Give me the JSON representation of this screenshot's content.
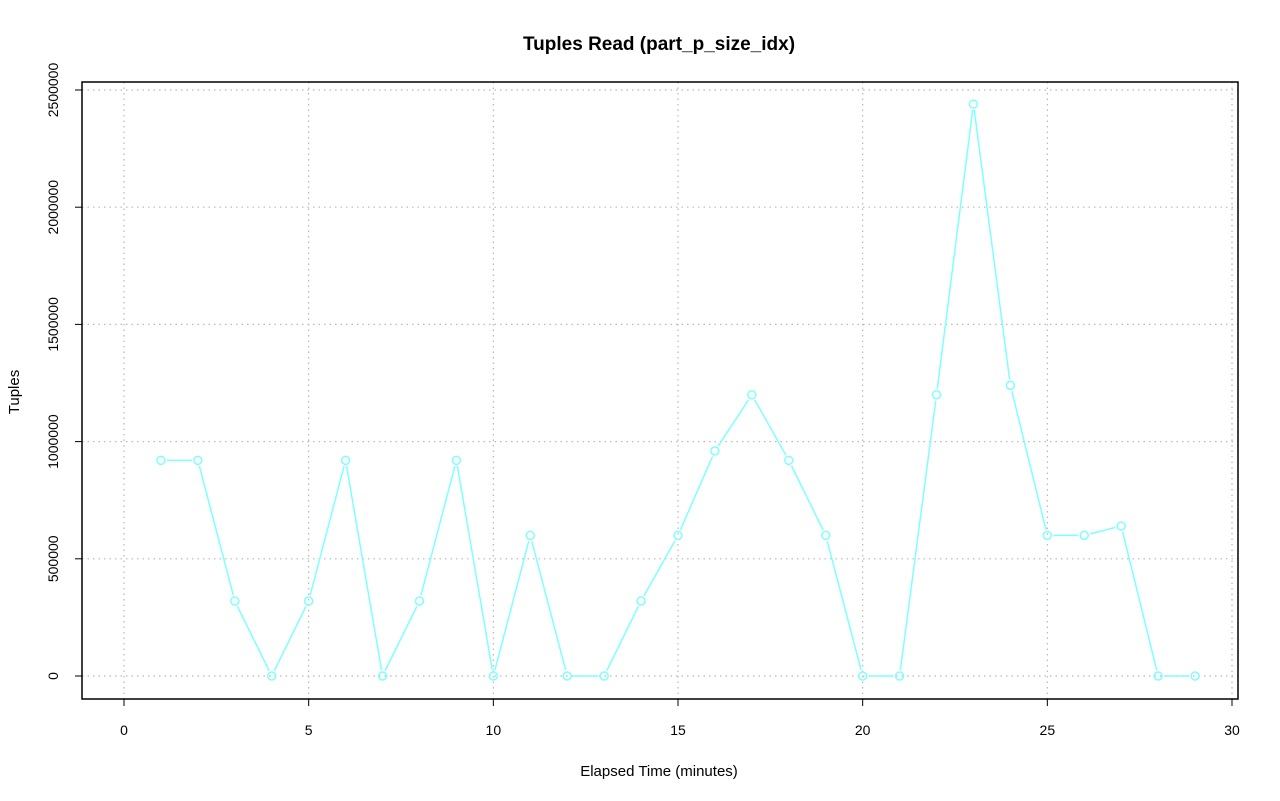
{
  "chart_data": {
    "type": "line",
    "title": "Tuples Read (part_p_size_idx)",
    "xlabel": "Elapsed Time (minutes)",
    "ylabel": "Tuples",
    "xlim": [
      0,
      30
    ],
    "ylim": [
      0,
      2500000
    ],
    "x_ticks": [
      0,
      5,
      10,
      15,
      20,
      25,
      30
    ],
    "y_ticks": [
      0,
      500000,
      1000000,
      1500000,
      2000000,
      2500000
    ],
    "grid": true,
    "series": [
      {
        "color": "#80ffff",
        "marker": "open-circle",
        "x": [
          1,
          2,
          3,
          4,
          5,
          6,
          7,
          8,
          9,
          10,
          11,
          12,
          13,
          14,
          15,
          16,
          17,
          18,
          19,
          20,
          21,
          22,
          23,
          24,
          25,
          26,
          27,
          28,
          29
        ],
        "values": [
          920000,
          920000,
          320000,
          0,
          320000,
          920000,
          0,
          320000,
          920000,
          0,
          600000,
          0,
          0,
          320000,
          600000,
          960000,
          1200000,
          920000,
          600000,
          0,
          0,
          1200000,
          2440000,
          1240000,
          600000,
          600000,
          640000,
          0,
          0
        ]
      }
    ]
  }
}
